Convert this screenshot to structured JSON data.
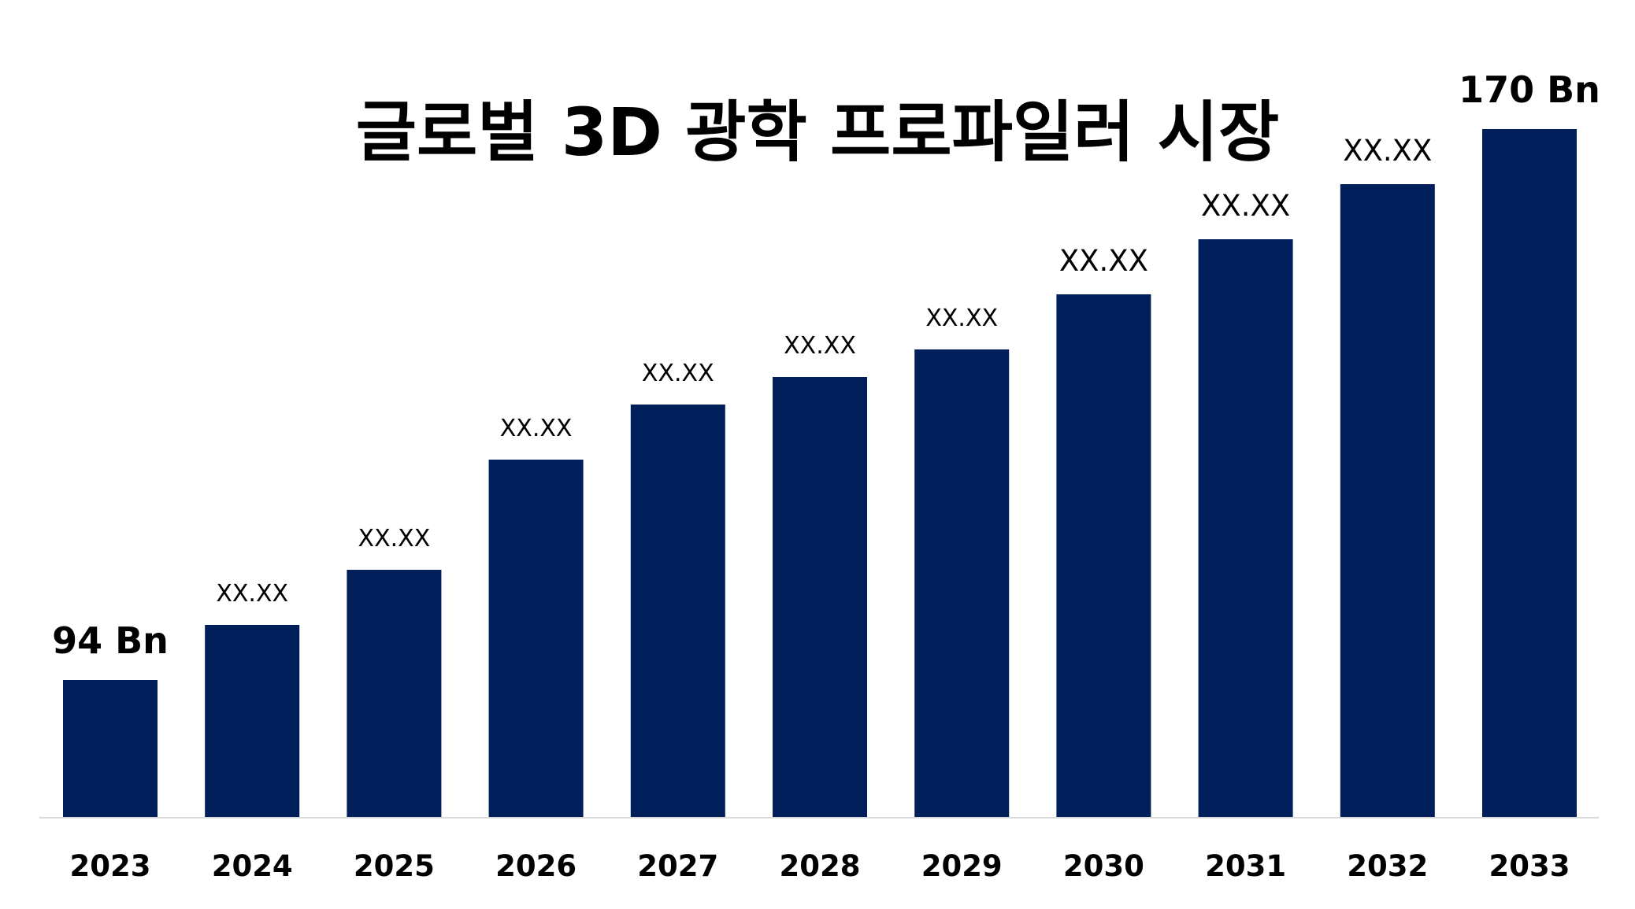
{
  "chart_data": {
    "type": "bar",
    "title": "글로벌 3D 광학 프로파일러 시장",
    "xlabel": "",
    "ylabel": "",
    "categories": [
      "2023",
      "2024",
      "2025",
      "2026",
      "2027",
      "2028",
      "2029",
      "2030",
      "2031",
      "2032",
      "2033"
    ],
    "values": [
      94,
      101.6,
      109.2,
      124.4,
      132,
      135.8,
      139.6,
      147.2,
      154.8,
      162.4,
      170
    ],
    "data_labels": [
      "94 Bn",
      "XX.XX",
      "XX.XX",
      "XX.XX",
      "XX.XX",
      "XX.XX",
      "XX.XX",
      "XX.XX",
      "XX.XX",
      "XX.XX",
      "170 Bn"
    ],
    "ylim": [
      75,
      175
    ],
    "grid": false,
    "legend": "none",
    "colors": {
      "bar": "#001F5B",
      "axis": "#D9D9D9",
      "text": "#000000"
    }
  }
}
